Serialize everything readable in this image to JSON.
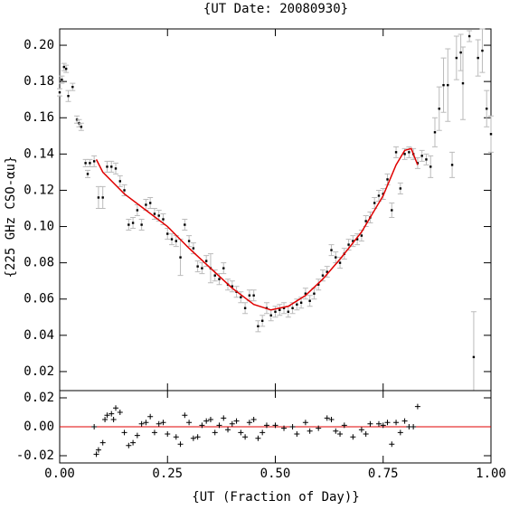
{
  "chart_data": [
    {
      "type": "scatter",
      "title": "{UT Date: 20080930}",
      "y_label": "{225 GHz CSO-αu}",
      "xlim": [
        0,
        1
      ],
      "ylim": [
        0.0095,
        0.209
      ],
      "yticks": [
        0.02,
        0.04,
        0.06,
        0.08,
        {
          "value": 0.1,
          "label": "0.10"
        },
        0.12,
        0.14,
        0.16,
        0.18,
        {
          "value": 0.2,
          "label": "0.20"
        }
      ],
      "series": [
        {
          "style": "errorbar",
          "color": "#000000",
          "error_color": "#bbbbbb",
          "x": [
            0,
            0.005,
            0.01,
            0.015,
            0.02,
            0.03,
            0.04,
            0.045,
            0.05,
            0.06,
            0.065,
            0.07,
            0.08,
            0.09,
            0.1,
            0.11,
            0.12,
            0.13,
            0.14,
            0.15,
            0.16,
            0.17,
            0.18,
            0.19,
            0.2,
            0.21,
            0.22,
            0.23,
            0.24,
            0.25,
            0.26,
            0.27,
            0.28,
            0.29,
            0.3,
            0.31,
            0.32,
            0.33,
            0.34,
            0.35,
            0.36,
            0.37,
            0.38,
            0.39,
            0.4,
            0.41,
            0.42,
            0.43,
            0.44,
            0.45,
            0.46,
            0.47,
            0.48,
            0.49,
            0.5,
            0.51,
            0.52,
            0.53,
            0.54,
            0.55,
            0.56,
            0.57,
            0.58,
            0.59,
            0.6,
            0.61,
            0.62,
            0.63,
            0.64,
            0.65,
            0.66,
            0.67,
            0.68,
            0.69,
            0.7,
            0.71,
            0.72,
            0.73,
            0.74,
            0.75,
            0.76,
            0.77,
            0.78,
            0.79,
            0.8,
            0.81,
            0.82,
            0.83,
            0.84,
            0.85,
            0.86,
            0.87,
            0.88,
            0.89,
            0.9,
            0.91,
            0.92,
            0.93,
            0.935,
            0.95,
            0.96,
            0.97,
            0.98,
            0.99,
            1
          ],
          "values": [
            0.174,
            0.181,
            0.188,
            0.187,
            0.172,
            0.177,
            0.159,
            0.157,
            0.155,
            0.135,
            0.129,
            0.135,
            0.136,
            0.116,
            0.116,
            0.133,
            0.133,
            0.132,
            0.125,
            0.12,
            0.101,
            0.102,
            0.109,
            0.101,
            0.112,
            0.113,
            0.107,
            0.106,
            0.104,
            0.096,
            0.093,
            0.092,
            0.083,
            0.101,
            0.092,
            0.088,
            0.078,
            0.077,
            0.081,
            0.077,
            0.073,
            0.071,
            0.077,
            0.068,
            0.067,
            0.064,
            0.061,
            0.055,
            0.062,
            0.062,
            0.045,
            0.048,
            0.055,
            0.051,
            0.053,
            0.054,
            0.055,
            0.053,
            0.055,
            0.057,
            0.058,
            0.063,
            0.059,
            0.063,
            0.068,
            0.073,
            0.075,
            0.087,
            0.083,
            0.08,
            0.085,
            0.09,
            0.092,
            0.093,
            0.095,
            0.103,
            0.105,
            0.113,
            0.117,
            0.118,
            0.126,
            0.109,
            0.141,
            0.121,
            0.14,
            0.141,
            0.14,
            0.135,
            0.139,
            0.137,
            0.133,
            0.152,
            0.165,
            0.178,
            0.178,
            0.134,
            0.193,
            0.196,
            0.179,
            0.205,
            0.028,
            0.193,
            0.197,
            0.165,
            0.151
          ],
          "errors": [
            0.002,
            0.002,
            0.002,
            0.002,
            0.003,
            0.002,
            0.002,
            0.002,
            0.002,
            0.002,
            0.002,
            0.002,
            0.003,
            0.006,
            0.006,
            0.003,
            0.003,
            0.003,
            0.003,
            0.003,
            0.003,
            0.003,
            0.003,
            0.003,
            0.003,
            0.003,
            0.003,
            0.003,
            0.003,
            0.003,
            0.003,
            0.003,
            0.01,
            0.003,
            0.003,
            0.003,
            0.003,
            0.003,
            0.003,
            0.008,
            0.003,
            0.003,
            0.003,
            0.003,
            0.003,
            0.003,
            0.003,
            0.003,
            0.003,
            0.003,
            0.003,
            0.003,
            0.003,
            0.003,
            0.003,
            0.003,
            0.003,
            0.003,
            0.003,
            0.003,
            0.003,
            0.003,
            0.003,
            0.003,
            0.003,
            0.003,
            0.003,
            0.003,
            0.003,
            0.003,
            0.003,
            0.003,
            0.003,
            0.003,
            0.003,
            0.003,
            0.003,
            0.003,
            0.003,
            0.003,
            0.003,
            0.004,
            0.003,
            0.003,
            0.003,
            0.003,
            0.003,
            0.003,
            0.003,
            0.003,
            0.006,
            0.008,
            0.012,
            0.015,
            0.02,
            0.007,
            0.012,
            0.01,
            0.02,
            0.003,
            0.025,
            0.01,
            0.012,
            0.01,
            0.01
          ]
        },
        {
          "style": "line",
          "color": "#e00000",
          "x": [
            0.085,
            0.1,
            0.15,
            0.2,
            0.25,
            0.3,
            0.35,
            0.4,
            0.45,
            0.49,
            0.53,
            0.57,
            0.61,
            0.65,
            0.7,
            0.75,
            0.78,
            0.8,
            0.815,
            0.83
          ],
          "values": [
            0.137,
            0.13,
            0.118,
            0.109,
            0.1,
            0.088,
            0.077,
            0.066,
            0.057,
            0.054,
            0.056,
            0.062,
            0.071,
            0.082,
            0.097,
            0.117,
            0.134,
            0.142,
            0.143,
            0.134
          ]
        }
      ]
    },
    {
      "type": "scatter",
      "x_label": "{UT (Fraction of Day)}",
      "xlim": [
        0,
        1
      ],
      "ylim": [
        -0.025,
        0.025
      ],
      "xticks": [
        {
          "value": 0,
          "label": "0.00"
        },
        0.25,
        {
          "value": 0.5,
          "label": "0.50"
        },
        0.75,
        {
          "value": 1,
          "label": "1.00"
        }
      ],
      "yticks": [
        -0.02,
        {
          "value": 0,
          "label": "0.00"
        },
        0.02
      ],
      "hline": 0,
      "hline_color": "#e00000",
      "series": [
        {
          "style": "plus",
          "color": "#000000",
          "x": [
            0.08,
            0.085,
            0.09,
            0.1,
            0.105,
            0.11,
            0.12,
            0.125,
            0.13,
            0.14,
            0.15,
            0.16,
            0.17,
            0.18,
            0.19,
            0.2,
            0.21,
            0.22,
            0.23,
            0.24,
            0.25,
            0.27,
            0.28,
            0.29,
            0.3,
            0.31,
            0.32,
            0.33,
            0.34,
            0.35,
            0.36,
            0.37,
            0.38,
            0.39,
            0.4,
            0.41,
            0.42,
            0.43,
            0.44,
            0.45,
            0.46,
            0.47,
            0.48,
            0.5,
            0.52,
            0.54,
            0.55,
            0.57,
            0.58,
            0.6,
            0.62,
            0.63,
            0.64,
            0.65,
            0.66,
            0.68,
            0.7,
            0.71,
            0.72,
            0.74,
            0.75,
            0.76,
            0.77,
            0.78,
            0.79,
            0.8,
            0.81,
            0.82,
            0.83
          ],
          "values": [
            0,
            -0.019,
            -0.016,
            -0.011,
            0.005,
            0.008,
            0.009,
            0.005,
            0.013,
            0.01,
            -0.004,
            -0.013,
            -0.011,
            -0.006,
            0.002,
            0.003,
            0.007,
            -0.004,
            0.002,
            0.003,
            -0.005,
            -0.007,
            -0.012,
            0.008,
            0.003,
            -0.008,
            -0.007,
            0.001,
            0.004,
            0.005,
            -0.004,
            0.001,
            0.006,
            -0.002,
            0.002,
            0.004,
            -0.004,
            -0.007,
            0.003,
            0.005,
            -0.008,
            -0.004,
            0.001,
            0.001,
            -0.001,
            0,
            -0.005,
            0.003,
            -0.003,
            -0.001,
            0.006,
            0.005,
            -0.003,
            -0.005,
            0.001,
            -0.007,
            -0.002,
            -0.005,
            0.002,
            0.002,
            0.001,
            0.003,
            -0.012,
            0.003,
            -0.004,
            0.004,
            0,
            0,
            0.014
          ]
        }
      ]
    }
  ]
}
